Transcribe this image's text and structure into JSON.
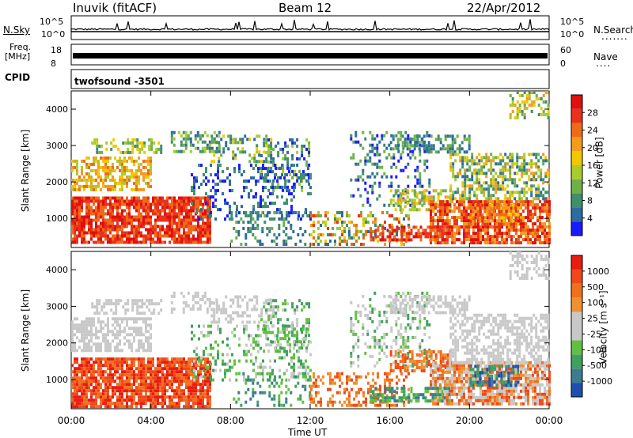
{
  "header": {
    "station": "Inuvik (fitACF)",
    "beam": "Beam 12",
    "date": "22/Apr/2012"
  },
  "top_panels": {
    "nsky_label": "N.Sky",
    "nsky_ticks": [
      "10^5",
      "10^0"
    ],
    "nsearch_label": "N.Search",
    "nsearch_ticks": [
      "10^5",
      "10^0"
    ],
    "freq_label": "Freq.",
    "freq_unit": "[MHz]",
    "freq_ticks": [
      "18",
      "8"
    ],
    "nave_label": "Nave",
    "nave_ticks": [
      "60",
      "0"
    ],
    "cpid_label": "CPID",
    "cpid_text": "twofsound -3501"
  },
  "chart_data": [
    {
      "type": "heatmap",
      "panel": "power",
      "xlabel": "Time UT",
      "ylabel": "Slant Range [km]",
      "ylim": [
        200,
        4500
      ],
      "y_ticks": [
        1000,
        2000,
        3000,
        4000
      ],
      "x_ticks": [
        "00:00",
        "04:00",
        "08:00",
        "12:00",
        "16:00",
        "20:00",
        "00:00"
      ],
      "colorbar_label": "Power [dB]",
      "colorbar_ticks": [
        4,
        8,
        12,
        16,
        20,
        24,
        28
      ],
      "colors": [
        "#1a1aff",
        "#2e6b9e",
        "#3f8f6c",
        "#6fb04b",
        "#a8cc2c",
        "#f0c800",
        "#f39a1f",
        "#ef6a18",
        "#e8331a",
        "#e01010"
      ]
    },
    {
      "type": "heatmap",
      "panel": "velocity",
      "xlabel": "Time UT",
      "ylabel": "Slant Range [km]",
      "ylim": [
        200,
        4500
      ],
      "y_ticks": [
        1000,
        2000,
        3000,
        4000
      ],
      "x_ticks": [
        "00:00",
        "04:00",
        "08:00",
        "12:00",
        "16:00",
        "20:00",
        "00:00"
      ],
      "colorbar_label": "Velocity [m s⁻¹]",
      "colorbar_ticks": [
        1000,
        500,
        100,
        25,
        -25,
        -100,
        -500,
        -1000
      ],
      "colors": [
        "#1e4fb0",
        "#3d7c8f",
        "#3fa060",
        "#62c040",
        "#c8c8c8",
        "#c8c8c8",
        "#f09030",
        "#f07020",
        "#f04818",
        "#e81c10"
      ]
    }
  ]
}
